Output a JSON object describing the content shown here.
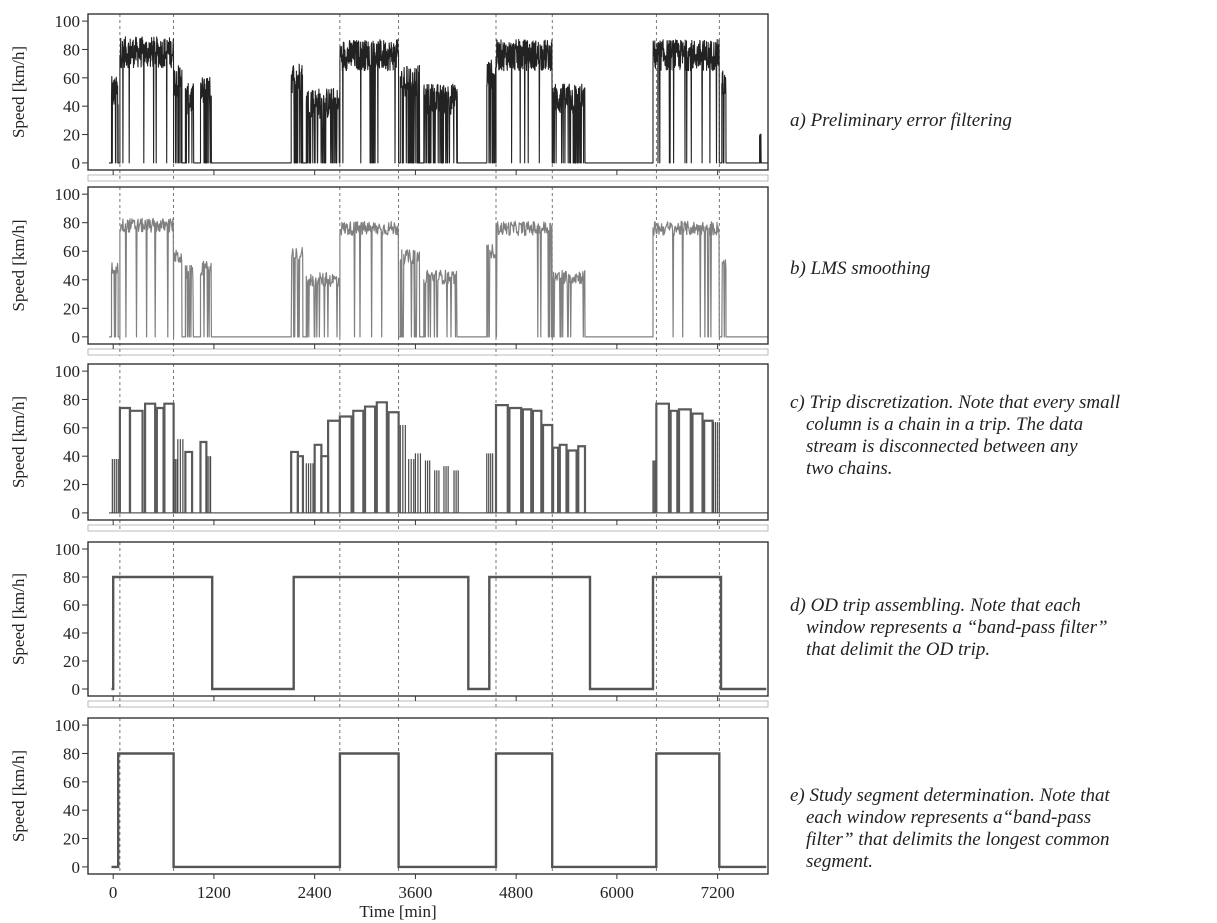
{
  "colors": {
    "series_a": "#222222",
    "series_b": "#808080",
    "series_c_bars": "#4a4a4a",
    "series_c_outline": "#5a5a5a",
    "windows": "#555555",
    "frame": "#333333",
    "guides": "#555555"
  },
  "shared_axes": {
    "ylabel": "Speed [km/h]",
    "xlabel": "Time [min]",
    "yticks": [
      0,
      20,
      40,
      60,
      80,
      100
    ],
    "xticks": [
      0,
      1200,
      2400,
      3600,
      4800,
      6000,
      7200
    ],
    "xlim": [
      -300,
      7800
    ],
    "ylim": [
      -5,
      105
    ],
    "dashed_guides_x": [
      80,
      720,
      2700,
      3400,
      4560,
      5230,
      6470,
      7220
    ]
  },
  "captions": [
    {
      "lines": [
        "a) Preliminary error filtering"
      ]
    },
    {
      "lines": [
        "b) LMS smoothing"
      ]
    },
    {
      "lines": [
        "c) Trip discretization. Note that every small",
        "column is a chain in a trip. The data",
        "stream is disconnected between any",
        "two chains."
      ]
    },
    {
      "lines": [
        "d) OD trip assembling. Note that each",
        "window represents a “band-pass filter”",
        "that delimit the OD trip."
      ]
    },
    {
      "lines": [
        "e) Study segment determination. Note that",
        "each window represents a“band-pass",
        "filter” that delimits the longest common",
        "segment."
      ]
    }
  ],
  "chart_data": [
    {
      "panel": "a",
      "type": "line",
      "style": "dense-noisy",
      "ylabel": "Speed [km/h]",
      "ylim": [
        -5,
        105
      ],
      "active_intervals": [
        {
          "start": -20,
          "end": 60,
          "level": 50
        },
        {
          "start": 80,
          "end": 720,
          "level": 78
        },
        {
          "start": 720,
          "end": 820,
          "level": 58
        },
        {
          "start": 860,
          "end": 960,
          "level": 45
        },
        {
          "start": 1040,
          "end": 1170,
          "level": 50
        },
        {
          "start": 2120,
          "end": 2260,
          "level": 60
        },
        {
          "start": 2300,
          "end": 2700,
          "level": 42
        },
        {
          "start": 2700,
          "end": 3400,
          "level": 76
        },
        {
          "start": 3420,
          "end": 3650,
          "level": 58
        },
        {
          "start": 3700,
          "end": 4100,
          "level": 45
        },
        {
          "start": 4450,
          "end": 4560,
          "level": 62
        },
        {
          "start": 4560,
          "end": 5230,
          "level": 76
        },
        {
          "start": 5240,
          "end": 5620,
          "level": 45
        },
        {
          "start": 6430,
          "end": 7220,
          "level": 76
        },
        {
          "start": 7250,
          "end": 7300,
          "level": 55
        },
        {
          "start": 7700,
          "end": 7720,
          "level": 10
        }
      ]
    },
    {
      "panel": "b",
      "type": "line",
      "style": "smoothed",
      "ylabel": "Speed [km/h]",
      "ylim": [
        -5,
        105
      ],
      "active_intervals": [
        {
          "start": -20,
          "end": 60,
          "level": 48
        },
        {
          "start": 80,
          "end": 720,
          "level": 78
        },
        {
          "start": 720,
          "end": 820,
          "level": 56
        },
        {
          "start": 860,
          "end": 960,
          "level": 45
        },
        {
          "start": 1040,
          "end": 1170,
          "level": 48
        },
        {
          "start": 2120,
          "end": 2260,
          "level": 58
        },
        {
          "start": 2300,
          "end": 2700,
          "level": 40
        },
        {
          "start": 2700,
          "end": 3400,
          "level": 76
        },
        {
          "start": 3420,
          "end": 3650,
          "level": 56
        },
        {
          "start": 3700,
          "end": 4100,
          "level": 42
        },
        {
          "start": 4450,
          "end": 4560,
          "level": 60
        },
        {
          "start": 4560,
          "end": 5230,
          "level": 76
        },
        {
          "start": 5240,
          "end": 5620,
          "level": 42
        },
        {
          "start": 6430,
          "end": 7220,
          "level": 76
        },
        {
          "start": 7250,
          "end": 7300,
          "level": 50
        }
      ]
    },
    {
      "panel": "c",
      "type": "bar",
      "style": "chains",
      "ylabel": "Speed [km/h]",
      "ylim": [
        -5,
        105
      ],
      "chains": [
        {
          "start": -10,
          "end": 60,
          "value": 38,
          "filled": true
        },
        {
          "start": 80,
          "end": 200,
          "value": 74,
          "filled": false
        },
        {
          "start": 200,
          "end": 350,
          "value": 72,
          "filled": false
        },
        {
          "start": 380,
          "end": 500,
          "value": 77,
          "filled": false
        },
        {
          "start": 520,
          "end": 600,
          "value": 74,
          "filled": false
        },
        {
          "start": 610,
          "end": 720,
          "value": 77,
          "filled": false
        },
        {
          "start": 720,
          "end": 760,
          "value": 38,
          "filled": true
        },
        {
          "start": 770,
          "end": 830,
          "value": 52,
          "filled": true
        },
        {
          "start": 860,
          "end": 940,
          "value": 43,
          "filled": false
        },
        {
          "start": 1040,
          "end": 1110,
          "value": 50,
          "filled": false
        },
        {
          "start": 1120,
          "end": 1160,
          "value": 40,
          "filled": true
        },
        {
          "start": 2120,
          "end": 2200,
          "value": 43,
          "filled": false
        },
        {
          "start": 2200,
          "end": 2260,
          "value": 40,
          "filled": false
        },
        {
          "start": 2300,
          "end": 2380,
          "value": 35,
          "filled": true
        },
        {
          "start": 2400,
          "end": 2480,
          "value": 48,
          "filled": false
        },
        {
          "start": 2480,
          "end": 2560,
          "value": 40,
          "filled": false
        },
        {
          "start": 2560,
          "end": 2700,
          "value": 65,
          "filled": false
        },
        {
          "start": 2700,
          "end": 2840,
          "value": 68,
          "filled": false
        },
        {
          "start": 2860,
          "end": 2980,
          "value": 72,
          "filled": false
        },
        {
          "start": 3000,
          "end": 3120,
          "value": 75,
          "filled": false
        },
        {
          "start": 3140,
          "end": 3260,
          "value": 78,
          "filled": false
        },
        {
          "start": 3280,
          "end": 3400,
          "value": 71,
          "filled": false
        },
        {
          "start": 3420,
          "end": 3480,
          "value": 62,
          "filled": true
        },
        {
          "start": 3520,
          "end": 3580,
          "value": 38,
          "filled": true
        },
        {
          "start": 3600,
          "end": 3660,
          "value": 42,
          "filled": true
        },
        {
          "start": 3720,
          "end": 3770,
          "value": 37,
          "filled": true
        },
        {
          "start": 3830,
          "end": 3880,
          "value": 30,
          "filled": true
        },
        {
          "start": 3940,
          "end": 3990,
          "value": 33,
          "filled": true
        },
        {
          "start": 4060,
          "end": 4110,
          "value": 30,
          "filled": true
        },
        {
          "start": 4450,
          "end": 4520,
          "value": 42,
          "filled": true
        },
        {
          "start": 4560,
          "end": 4700,
          "value": 76,
          "filled": false
        },
        {
          "start": 4720,
          "end": 4860,
          "value": 74,
          "filled": false
        },
        {
          "start": 4880,
          "end": 4980,
          "value": 73,
          "filled": false
        },
        {
          "start": 5000,
          "end": 5100,
          "value": 72,
          "filled": false
        },
        {
          "start": 5120,
          "end": 5230,
          "value": 62,
          "filled": false
        },
        {
          "start": 5240,
          "end": 5300,
          "value": 46,
          "filled": false
        },
        {
          "start": 5320,
          "end": 5400,
          "value": 48,
          "filled": false
        },
        {
          "start": 5420,
          "end": 5520,
          "value": 44,
          "filled": false
        },
        {
          "start": 5540,
          "end": 5620,
          "value": 47,
          "filled": false
        },
        {
          "start": 6430,
          "end": 6460,
          "value": 37,
          "filled": true
        },
        {
          "start": 6470,
          "end": 6620,
          "value": 77,
          "filled": false
        },
        {
          "start": 6640,
          "end": 6720,
          "value": 72,
          "filled": false
        },
        {
          "start": 6740,
          "end": 6880,
          "value": 73,
          "filled": false
        },
        {
          "start": 6900,
          "end": 7020,
          "value": 70,
          "filled": false
        },
        {
          "start": 7040,
          "end": 7140,
          "value": 65,
          "filled": false
        },
        {
          "start": 7150,
          "end": 7220,
          "value": 64,
          "filled": true
        }
      ]
    },
    {
      "panel": "d",
      "type": "line",
      "style": "step",
      "ylabel": "Speed [km/h]",
      "ylim": [
        -5,
        105
      ],
      "points": [
        [
          -20,
          0
        ],
        [
          0,
          0
        ],
        [
          0,
          80
        ],
        [
          1180,
          80
        ],
        [
          1180,
          0
        ],
        [
          2150,
          0
        ],
        [
          2150,
          80
        ],
        [
          4230,
          80
        ],
        [
          4230,
          0
        ],
        [
          4480,
          0
        ],
        [
          4480,
          80
        ],
        [
          5680,
          80
        ],
        [
          5680,
          0
        ],
        [
          6430,
          0
        ],
        [
          6430,
          80
        ],
        [
          7240,
          80
        ],
        [
          7240,
          0
        ],
        [
          7780,
          0
        ]
      ]
    },
    {
      "panel": "e",
      "type": "line",
      "style": "step",
      "ylabel": "Speed [km/h]",
      "xlabel": "Time [min]",
      "ylim": [
        -5,
        105
      ],
      "points": [
        [
          -20,
          0
        ],
        [
          60,
          0
        ],
        [
          60,
          80
        ],
        [
          720,
          80
        ],
        [
          720,
          0
        ],
        [
          2700,
          0
        ],
        [
          2700,
          80
        ],
        [
          3400,
          80
        ],
        [
          3400,
          0
        ],
        [
          4560,
          0
        ],
        [
          4560,
          80
        ],
        [
          5230,
          80
        ],
        [
          5230,
          0
        ],
        [
          6470,
          0
        ],
        [
          6470,
          80
        ],
        [
          7220,
          80
        ],
        [
          7220,
          0
        ],
        [
          7780,
          0
        ]
      ]
    }
  ]
}
